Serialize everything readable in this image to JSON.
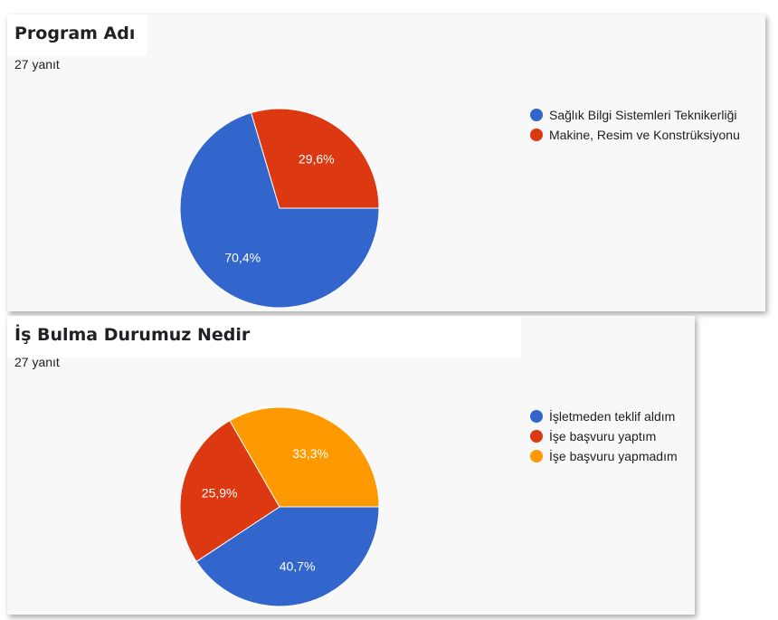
{
  "charts": [
    {
      "title": "Program Adı",
      "response_count": "27 yanıt",
      "slices": [
        {
          "label": "Sağlık Bilgi Sistemleri Teknikerliği",
          "value": 70.4,
          "display": "70,4%",
          "color": "#3366cc"
        },
        {
          "label": "Makine, Resim ve Konstrüksiyonu",
          "value": 29.6,
          "display": "29,6%",
          "color": "#dc3912"
        }
      ]
    },
    {
      "title": "İş Bulma Durumuz Nedir",
      "response_count": "27 yanıt",
      "slices": [
        {
          "label": "İşletmeden teklif aldım",
          "value": 40.7,
          "display": "40,7%",
          "color": "#3366cc"
        },
        {
          "label": "İşe başvuru yaptım",
          "value": 25.9,
          "display": "25,9%",
          "color": "#dc3912"
        },
        {
          "label": "İşe başvuru yapmadım",
          "value": 33.3,
          "display": "33,3%",
          "color": "#ff9900"
        }
      ]
    }
  ],
  "chart_data": [
    {
      "type": "pie",
      "title": "Program Adı",
      "categories": [
        "Sağlık Bilgi Sistemleri Teknikerliği",
        "Makine, Resim ve Konstrüksiyonu"
      ],
      "values": [
        70.4,
        29.6
      ],
      "legend": "right"
    },
    {
      "type": "pie",
      "title": "İş Bulma Durumuz Nedir",
      "categories": [
        "İşletmeden teklif aldım",
        "İşe başvuru yaptım",
        "İşe başvuru yapmadım"
      ],
      "values": [
        40.7,
        25.9,
        33.3
      ],
      "legend": "right"
    }
  ]
}
